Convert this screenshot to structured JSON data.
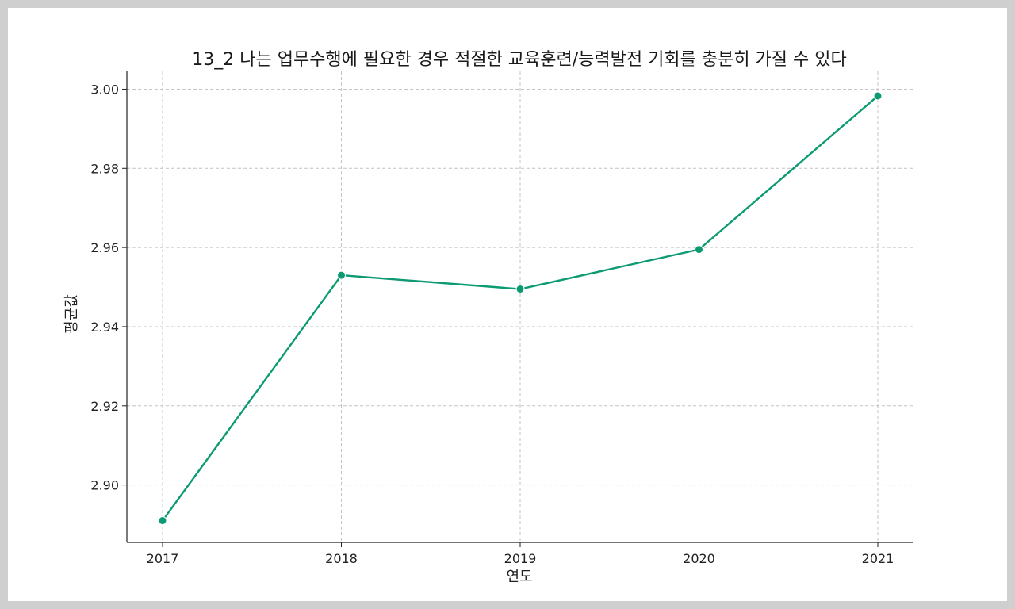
{
  "chart_data": {
    "type": "line",
    "title": "13_2 나는 업무수행에 필요한 경우 적절한 교육훈련/능력발전 기회를 충분히 가질 수 있다",
    "xlabel": "연도",
    "ylabel": "평균값",
    "x": [
      2017,
      2018,
      2019,
      2020,
      2021
    ],
    "x_tick_labels": [
      "2017",
      "2018",
      "2019",
      "2020",
      "2021"
    ],
    "series": [
      {
        "values": [
          2.891,
          2.953,
          2.9495,
          2.9595,
          2.9983
        ]
      }
    ],
    "ylim": [
      2.8855,
      3.0045
    ],
    "y_ticks": [
      2.9,
      2.92,
      2.94,
      2.96,
      2.98,
      3.0
    ],
    "y_tick_labels": [
      "2.90",
      "2.92",
      "2.94",
      "2.96",
      "2.98",
      "3.00"
    ],
    "grid": true,
    "line_color": "#0b9a72"
  }
}
